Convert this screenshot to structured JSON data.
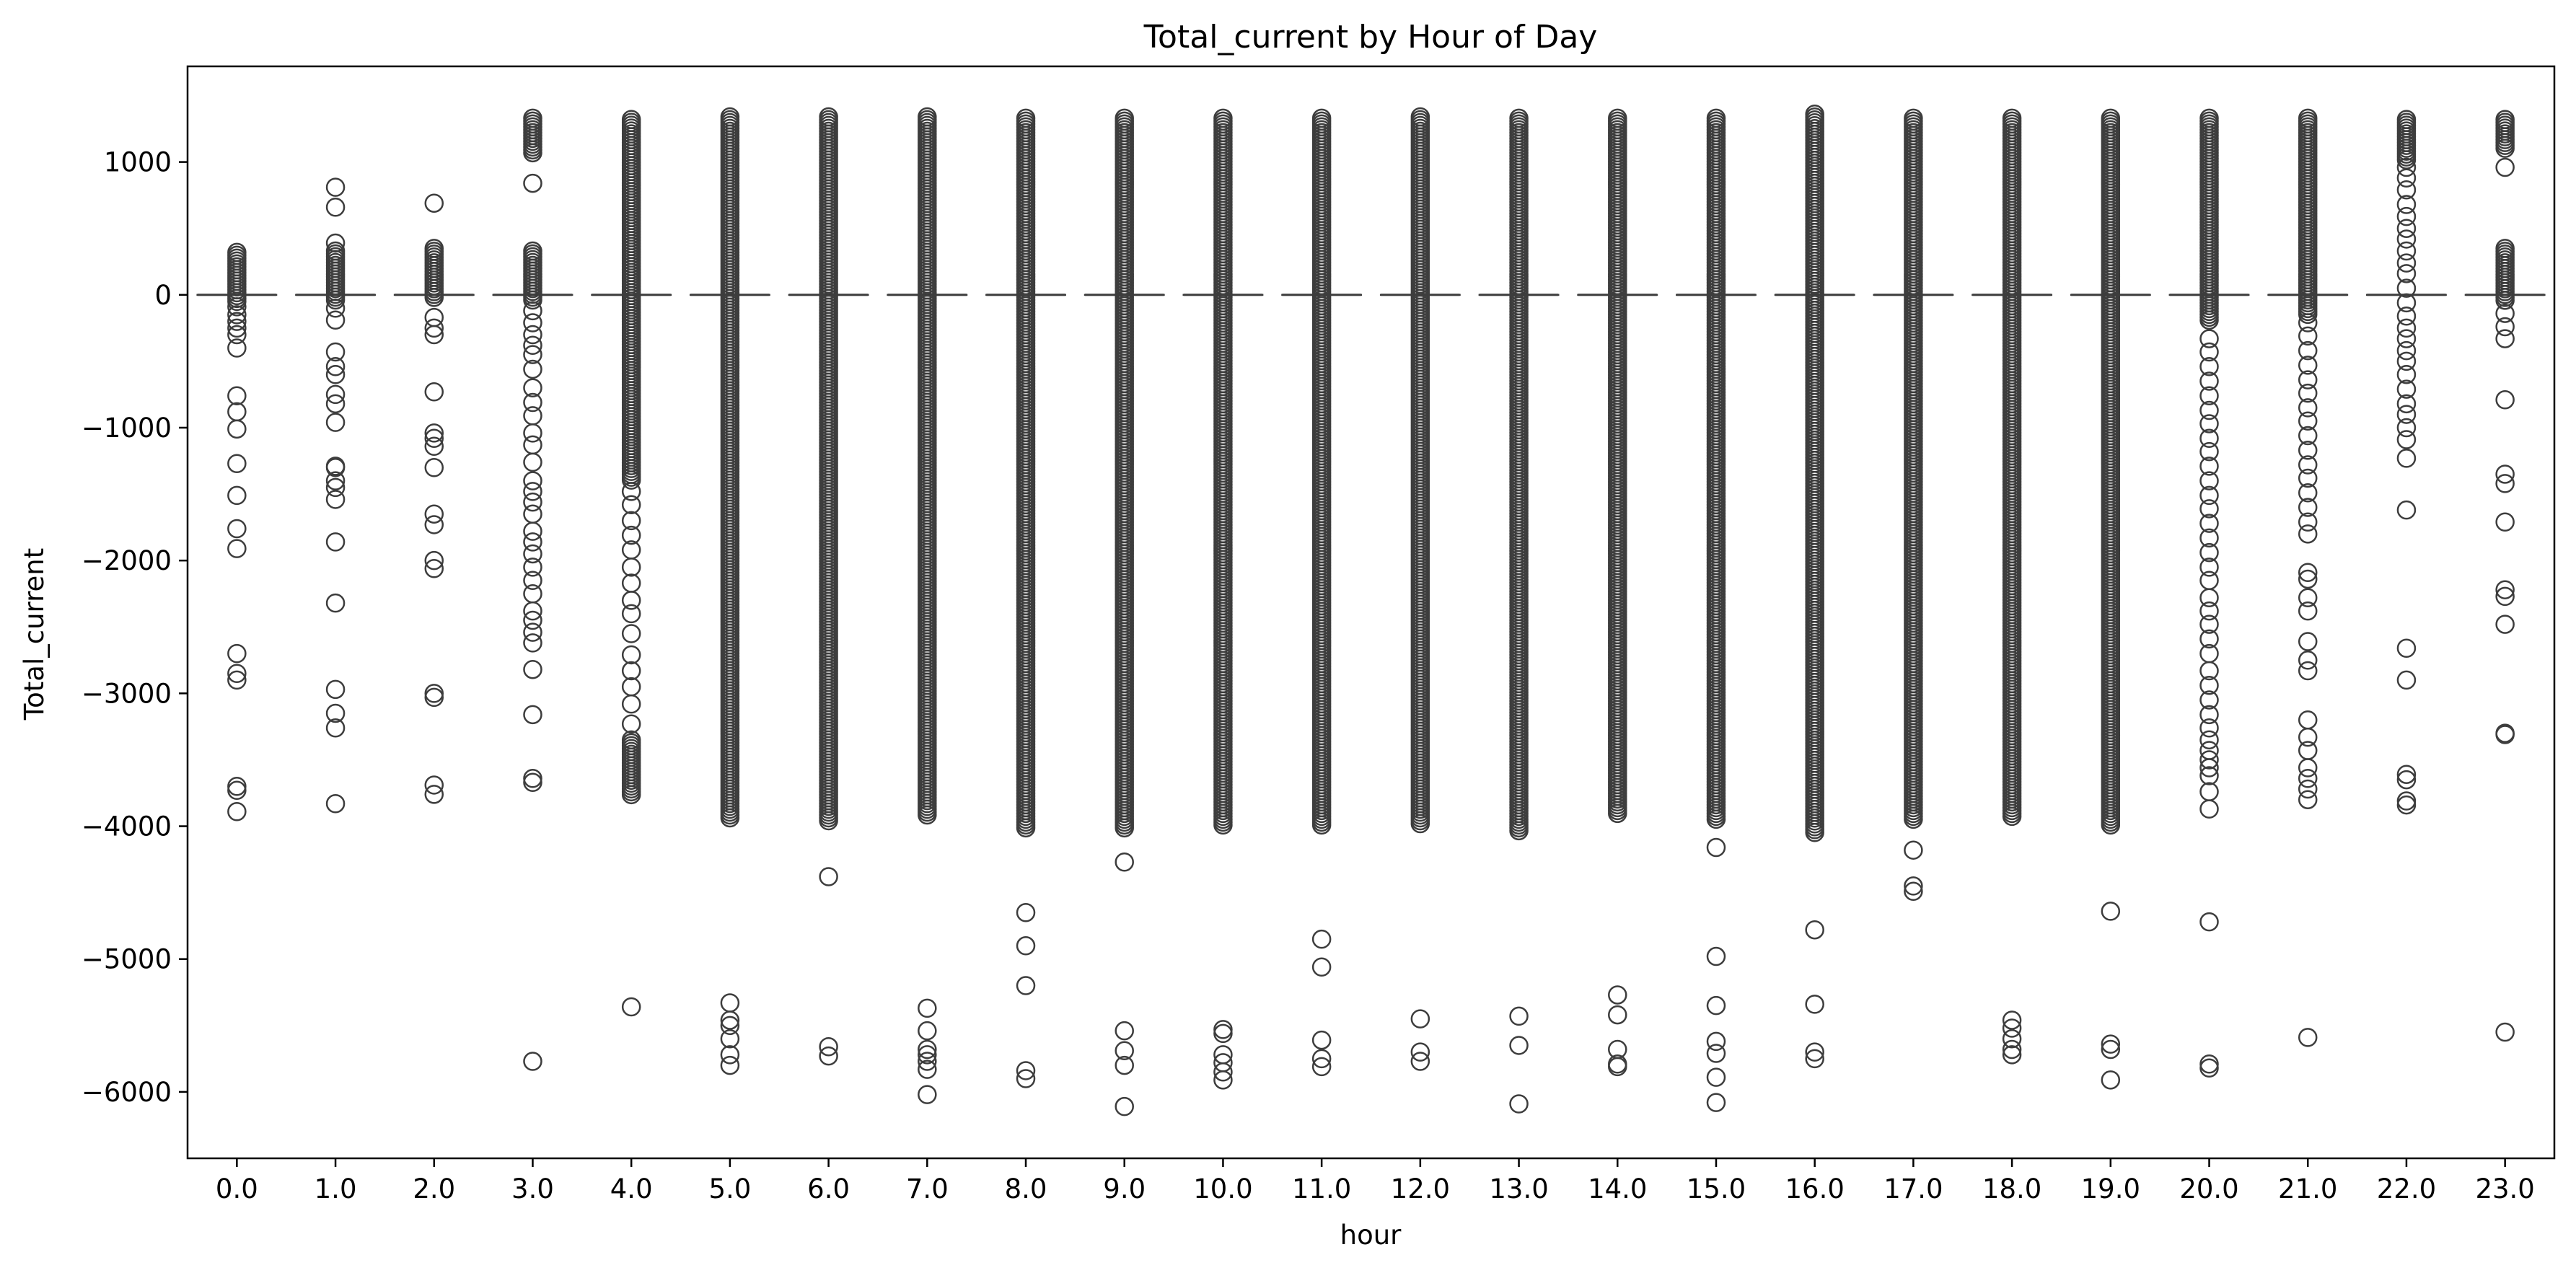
{
  "chart_data": {
    "type": "box",
    "title": "Total_current by Hour of Day",
    "xlabel": "hour",
    "ylabel": "Total_current",
    "categories": [
      "0.0",
      "1.0",
      "2.0",
      "3.0",
      "4.0",
      "5.0",
      "6.0",
      "7.0",
      "8.0",
      "9.0",
      "10.0",
      "11.0",
      "12.0",
      "13.0",
      "14.0",
      "15.0",
      "16.0",
      "17.0",
      "18.0",
      "19.0",
      "20.0",
      "21.0",
      "22.0",
      "23.0"
    ],
    "yticks": [
      1000,
      0,
      -1000,
      -2000,
      -3000,
      -4000,
      -5000,
      -6000
    ],
    "ylim": [
      -6500,
      1720
    ],
    "grid": false,
    "legend": "none",
    "colors": {
      "box": "#3d3d3d",
      "background": "#ffffff"
    },
    "boxes": [
      {
        "hour": "0.0",
        "median": 0,
        "q1": 0,
        "q3": 0,
        "whisker_low": 0,
        "whisker_high": 0
      },
      {
        "hour": "1.0",
        "median": 0,
        "q1": 0,
        "q3": 0,
        "whisker_low": 0,
        "whisker_high": 0
      },
      {
        "hour": "2.0",
        "median": 0,
        "q1": 0,
        "q3": 0,
        "whisker_low": 0,
        "whisker_high": 0
      },
      {
        "hour": "3.0",
        "median": 0,
        "q1": 0,
        "q3": 0,
        "whisker_low": 0,
        "whisker_high": 0
      },
      {
        "hour": "4.0",
        "median": 0,
        "q1": 0,
        "q3": 0,
        "whisker_low": 0,
        "whisker_high": 0
      },
      {
        "hour": "5.0",
        "median": 0,
        "q1": 0,
        "q3": 0,
        "whisker_low": 0,
        "whisker_high": 0
      },
      {
        "hour": "6.0",
        "median": 0,
        "q1": 0,
        "q3": 0,
        "whisker_low": 0,
        "whisker_high": 0
      },
      {
        "hour": "7.0",
        "median": 0,
        "q1": 0,
        "q3": 0,
        "whisker_low": 0,
        "whisker_high": 0
      },
      {
        "hour": "8.0",
        "median": 0,
        "q1": 0,
        "q3": 0,
        "whisker_low": 0,
        "whisker_high": 0
      },
      {
        "hour": "9.0",
        "median": 0,
        "q1": 0,
        "q3": 0,
        "whisker_low": 0,
        "whisker_high": 0
      },
      {
        "hour": "10.0",
        "median": 0,
        "q1": 0,
        "q3": 0,
        "whisker_low": 0,
        "whisker_high": 0
      },
      {
        "hour": "11.0",
        "median": 0,
        "q1": 0,
        "q3": 0,
        "whisker_low": 0,
        "whisker_high": 0
      },
      {
        "hour": "12.0",
        "median": 0,
        "q1": 0,
        "q3": 0,
        "whisker_low": 0,
        "whisker_high": 0
      },
      {
        "hour": "13.0",
        "median": 0,
        "q1": 0,
        "q3": 0,
        "whisker_low": 0,
        "whisker_high": 0
      },
      {
        "hour": "14.0",
        "median": 0,
        "q1": 0,
        "q3": 0,
        "whisker_low": 0,
        "whisker_high": 0
      },
      {
        "hour": "15.0",
        "median": 0,
        "q1": 0,
        "q3": 0,
        "whisker_low": 0,
        "whisker_high": 0
      },
      {
        "hour": "16.0",
        "median": 0,
        "q1": 0,
        "q3": 0,
        "whisker_low": 0,
        "whisker_high": 0
      },
      {
        "hour": "17.0",
        "median": 0,
        "q1": 0,
        "q3": 0,
        "whisker_low": 0,
        "whisker_high": 0
      },
      {
        "hour": "18.0",
        "median": 0,
        "q1": 0,
        "q3": 0,
        "whisker_low": 0,
        "whisker_high": 0
      },
      {
        "hour": "19.0",
        "median": 0,
        "q1": 0,
        "q3": 0,
        "whisker_low": 0,
        "whisker_high": 0
      },
      {
        "hour": "20.0",
        "median": 0,
        "q1": 0,
        "q3": 0,
        "whisker_low": 0,
        "whisker_high": 0
      },
      {
        "hour": "21.0",
        "median": 0,
        "q1": 0,
        "q3": 0,
        "whisker_low": 0,
        "whisker_high": 0
      },
      {
        "hour": "22.0",
        "median": 0,
        "q1": 0,
        "q3": 0,
        "whisker_low": 0,
        "whisker_high": 0
      },
      {
        "hour": "23.0",
        "median": 0,
        "q1": 0,
        "q3": 0,
        "whisker_low": 0,
        "whisker_high": 0
      }
    ],
    "outliers": [
      {
        "hour": "0.0",
        "dense_ranges": [
          [
            -50,
            320
          ]
        ],
        "values": [
          -3700,
          -3730,
          -3890,
          -2700,
          -2850,
          -2900,
          -1760,
          -1910,
          -1510,
          -1270,
          -1010,
          -880,
          -760,
          -400,
          -300,
          -250,
          -200,
          -150,
          -90
        ]
      },
      {
        "hour": "1.0",
        "dense_ranges": [
          [
            -60,
            330
          ]
        ],
        "values": [
          -3830,
          -3260,
          -3150,
          -2970,
          -2320,
          -1860,
          -1540,
          -1450,
          -1400,
          -1300,
          -1290,
          -960,
          -820,
          -750,
          -600,
          -540,
          -430,
          -190,
          -100,
          390,
          660,
          810
        ]
      },
      {
        "hour": "2.0",
        "dense_ranges": [
          [
            -40,
            350
          ]
        ],
        "values": [
          -3760,
          -3690,
          -3030,
          -3000,
          -2060,
          -2000,
          -1730,
          -1650,
          -1300,
          -1140,
          -1080,
          -1040,
          -730,
          -300,
          -250,
          -170,
          690
        ]
      },
      {
        "hour": "3.0",
        "dense_ranges": [
          [
            -60,
            330
          ],
          [
            1050,
            1330
          ]
        ],
        "values": [
          -5770,
          -3670,
          -3640,
          -3160,
          -2820,
          -2620,
          -2540,
          -2450,
          -2380,
          -2250,
          -2150,
          -2050,
          -1950,
          -1860,
          -1780,
          -1650,
          -1560,
          -1480,
          -1400,
          -1260,
          -1130,
          -1040,
          -910,
          -810,
          -700,
          -560,
          -450,
          -380,
          -300,
          -210,
          -120,
          840
        ]
      },
      {
        "hour": "4.0",
        "dense_ranges": [
          [
            -3780,
            -3350
          ],
          [
            -1400,
            1320
          ]
        ],
        "values": [
          -5360,
          -3230,
          -3080,
          -2950,
          -2830,
          -2710,
          -2550,
          -2400,
          -2300,
          -2170,
          -2050,
          -1920,
          -1810,
          -1700,
          -1580,
          -1480
        ]
      },
      {
        "hour": "5.0",
        "dense_ranges": [
          [
            -3950,
            1340
          ]
        ],
        "values": [
          -5330,
          -5460,
          -5500,
          -5600,
          -5720,
          -5800
        ]
      },
      {
        "hour": "6.0",
        "dense_ranges": [
          [
            -3960,
            1340
          ]
        ],
        "values": [
          -4380,
          -5660,
          -5730
        ]
      },
      {
        "hour": "7.0",
        "dense_ranges": [
          [
            -3930,
            1340
          ]
        ],
        "values": [
          -5370,
          -5540,
          -5680,
          -5720,
          -5770,
          -5830,
          -6020
        ]
      },
      {
        "hour": "8.0",
        "dense_ranges": [
          [
            -4020,
            1330
          ]
        ],
        "values": [
          -4650,
          -4900,
          -5200,
          -5840,
          -5900
        ]
      },
      {
        "hour": "9.0",
        "dense_ranges": [
          [
            -4030,
            1330
          ]
        ],
        "values": [
          -4270,
          -5540,
          -5690,
          -5800,
          -6110
        ]
      },
      {
        "hour": "10.0",
        "dense_ranges": [
          [
            -4000,
            1330
          ]
        ],
        "values": [
          -5530,
          -5560,
          -5720,
          -5780,
          -5850,
          -5910
        ]
      },
      {
        "hour": "11.0",
        "dense_ranges": [
          [
            -4000,
            1330
          ]
        ],
        "values": [
          -4850,
          -5060,
          -5610,
          -5750,
          -5810
        ]
      },
      {
        "hour": "12.0",
        "dense_ranges": [
          [
            -4000,
            1340
          ]
        ],
        "values": [
          -5450,
          -5700,
          -5770
        ]
      },
      {
        "hour": "13.0",
        "dense_ranges": [
          [
            -4040,
            1330
          ]
        ],
        "values": [
          -5430,
          -5650,
          -6090
        ]
      },
      {
        "hour": "14.0",
        "dense_ranges": [
          [
            -3910,
            1330
          ]
        ],
        "values": [
          -5270,
          -5420,
          -5680,
          -5790,
          -5810
        ]
      },
      {
        "hour": "15.0",
        "dense_ranges": [
          [
            -3950,
            1330
          ]
        ],
        "values": [
          -4160,
          -4980,
          -5350,
          -5620,
          -5710,
          -5890,
          -6080
        ]
      },
      {
        "hour": "16.0",
        "dense_ranges": [
          [
            -4060,
            1360
          ]
        ],
        "values": [
          -4780,
          -5340,
          -5700,
          -5750
        ]
      },
      {
        "hour": "17.0",
        "dense_ranges": [
          [
            -3950,
            1330
          ]
        ],
        "values": [
          -4180,
          -4450,
          -4490
        ]
      },
      {
        "hour": "18.0",
        "dense_ranges": [
          [
            -3930,
            1330
          ]
        ],
        "values": [
          -5460,
          -5520,
          -5600,
          -5680,
          -5720
        ]
      },
      {
        "hour": "19.0",
        "dense_ranges": [
          [
            -4000,
            1330
          ]
        ],
        "values": [
          -4640,
          -5640,
          -5680,
          -5910
        ]
      },
      {
        "hour": "20.0",
        "dense_ranges": [
          [
            -200,
            1330
          ]
        ],
        "values": [
          -4720,
          -5790,
          -5820,
          -3870,
          -3740,
          -3620,
          -3560,
          -3500,
          -3430,
          -3350,
          -3260,
          -3160,
          -3050,
          -2940,
          -2830,
          -2700,
          -2590,
          -2480,
          -2380,
          -2280,
          -2150,
          -2050,
          -1940,
          -1830,
          -1720,
          -1610,
          -1510,
          -1400,
          -1290,
          -1180,
          -1080,
          -970,
          -870,
          -760,
          -650,
          -540,
          -430,
          -330
        ]
      },
      {
        "hour": "21.0",
        "dense_ranges": [
          [
            -150,
            1330
          ]
        ],
        "values": [
          -5590,
          -3800,
          -3720,
          -3640,
          -3560,
          -3430,
          -3330,
          -3200,
          -2830,
          -2750,
          -2610,
          -2380,
          -2280,
          -2140,
          -2090,
          -1800,
          -1710,
          -1600,
          -1490,
          -1380,
          -1280,
          -1170,
          -1060,
          -950,
          -850,
          -740,
          -640,
          -530,
          -420,
          -310,
          -210
        ]
      },
      {
        "hour": "22.0",
        "dense_ranges": [
          [
            1000,
            1320
          ]
        ],
        "values": [
          -3840,
          -3810,
          -3650,
          -3610,
          -2900,
          -2660,
          -1620,
          -1230,
          -1090,
          -1000,
          -900,
          -820,
          -710,
          -600,
          -500,
          -420,
          -330,
          -250,
          -160,
          -60,
          50,
          160,
          240,
          330,
          420,
          500,
          590,
          680,
          790,
          880,
          960
        ]
      },
      {
        "hour": "23.0",
        "dense_ranges": [
          [
            -60,
            350
          ],
          [
            1100,
            1320
          ]
        ],
        "values": [
          -5550,
          -3300,
          -3310,
          -2480,
          -2270,
          -2220,
          -1710,
          -1420,
          -1350,
          -790,
          -330,
          -240,
          -140,
          960
        ]
      }
    ]
  }
}
